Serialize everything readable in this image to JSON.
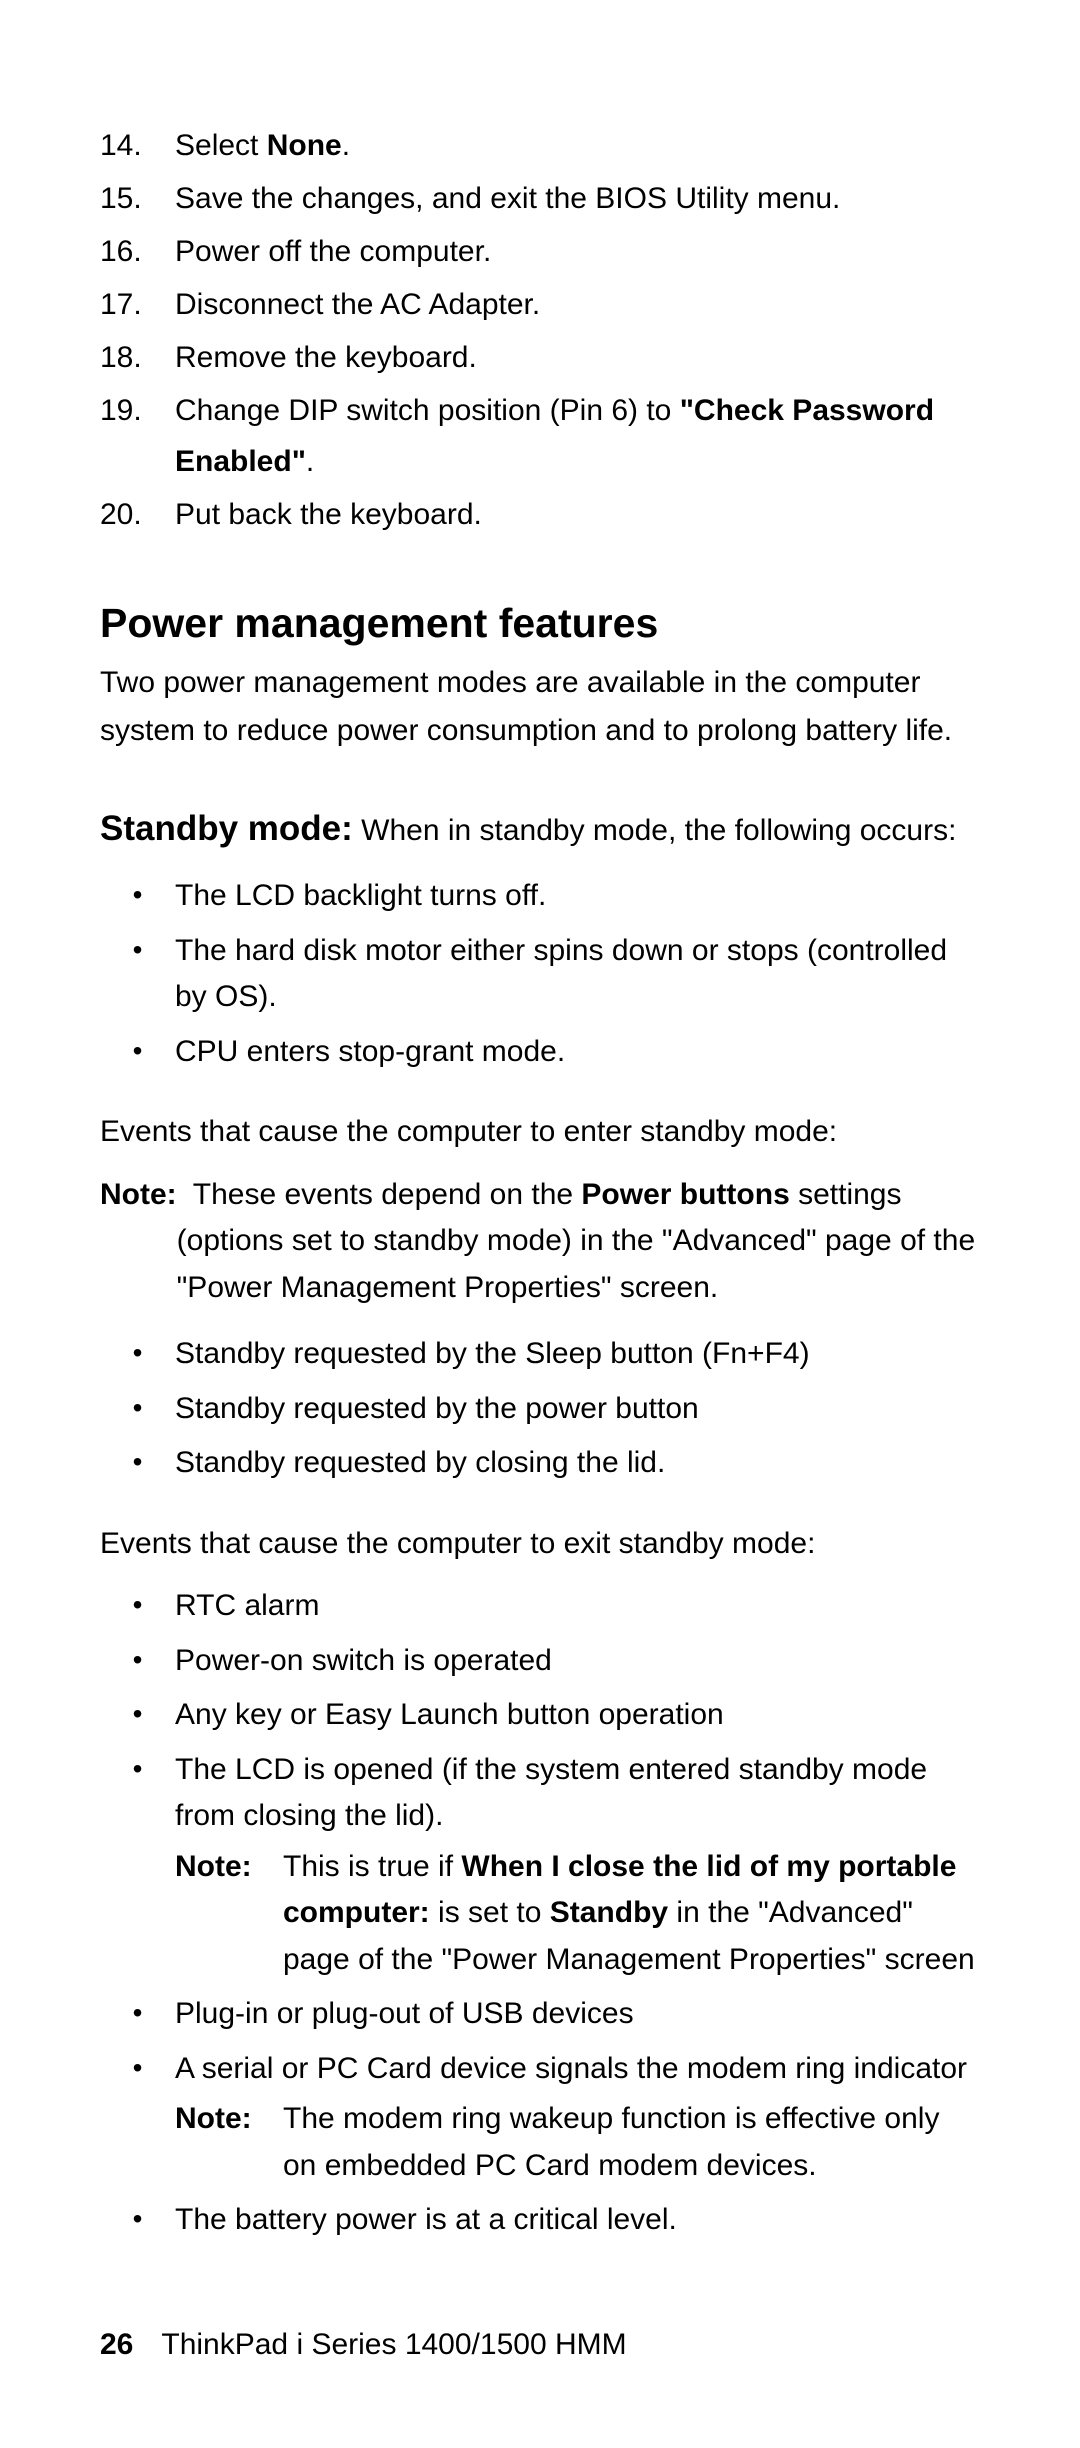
{
  "steps": [
    {
      "num": "14.",
      "pre": "Select ",
      "bold": "None",
      "post": "."
    },
    {
      "num": "15.",
      "text": "Save the changes, and exit the BIOS Utility menu."
    },
    {
      "num": "16.",
      "text": "Power off the computer."
    },
    {
      "num": "17.",
      "text": "Disconnect the AC Adapter."
    },
    {
      "num": "18.",
      "text": "Remove the keyboard."
    },
    {
      "num": "19.",
      "pre": "Change DIP switch position (Pin 6) to ",
      "bold": "\"Check Password Enabled\"",
      "post": "."
    },
    {
      "num": "20.",
      "text": "Put back the keyboard."
    }
  ],
  "heading": "Power management features",
  "intro": "Two power management modes are available in the computer system to reduce power consumption and to prolong battery life.",
  "standby": {
    "label": "Standby mode:",
    "intro_rest": "   When in standby mode, the following occurs:",
    "occurs": [
      "The LCD backlight turns off.",
      "The hard disk motor either spins down or stops (controlled by OS).",
      "CPU enters stop-grant mode."
    ],
    "enter_events_heading": "Events that cause the computer to enter standby mode:",
    "note1": {
      "label": "Note:",
      "pre": "  These events depend on the ",
      "bold": "Power buttons",
      "post": " settings (options set to standby mode) in the \"Advanced\" page of the \"Power Management Properties\" screen."
    },
    "enter_events": [
      "Standby requested by the Sleep button (Fn+F4)",
      "Standby requested by the power button",
      "Standby requested by closing the lid."
    ],
    "exit_events_heading": "Events that cause the computer to exit standby mode:",
    "exit_events_a": [
      "RTC alarm",
      "Power-on switch is operated",
      "Any key or Easy Launch button operation"
    ],
    "lcd_item": "The LCD is opened (if the system entered standby mode from closing the lid).",
    "lcd_note": {
      "label": "Note:",
      "pre": "This is true if ",
      "bold1": "When I close the lid of my portable computer:",
      "mid": " is set to ",
      "bold2": "Standby",
      "post": " in the \"Advanced\" page of the \"Power Management Properties\" screen"
    },
    "usb_item": "Plug-in or plug-out of USB devices",
    "serial_item": "A serial or PC Card device signals the modem ring indicator",
    "serial_note": {
      "label": "Note:",
      "text": "The modem ring wakeup function is effective only on embedded PC Card modem devices."
    },
    "battery_item": "The battery power is at a critical level."
  },
  "footer": {
    "page": "26",
    "title": "ThinkPad i Series 1400/1500 HMM"
  }
}
